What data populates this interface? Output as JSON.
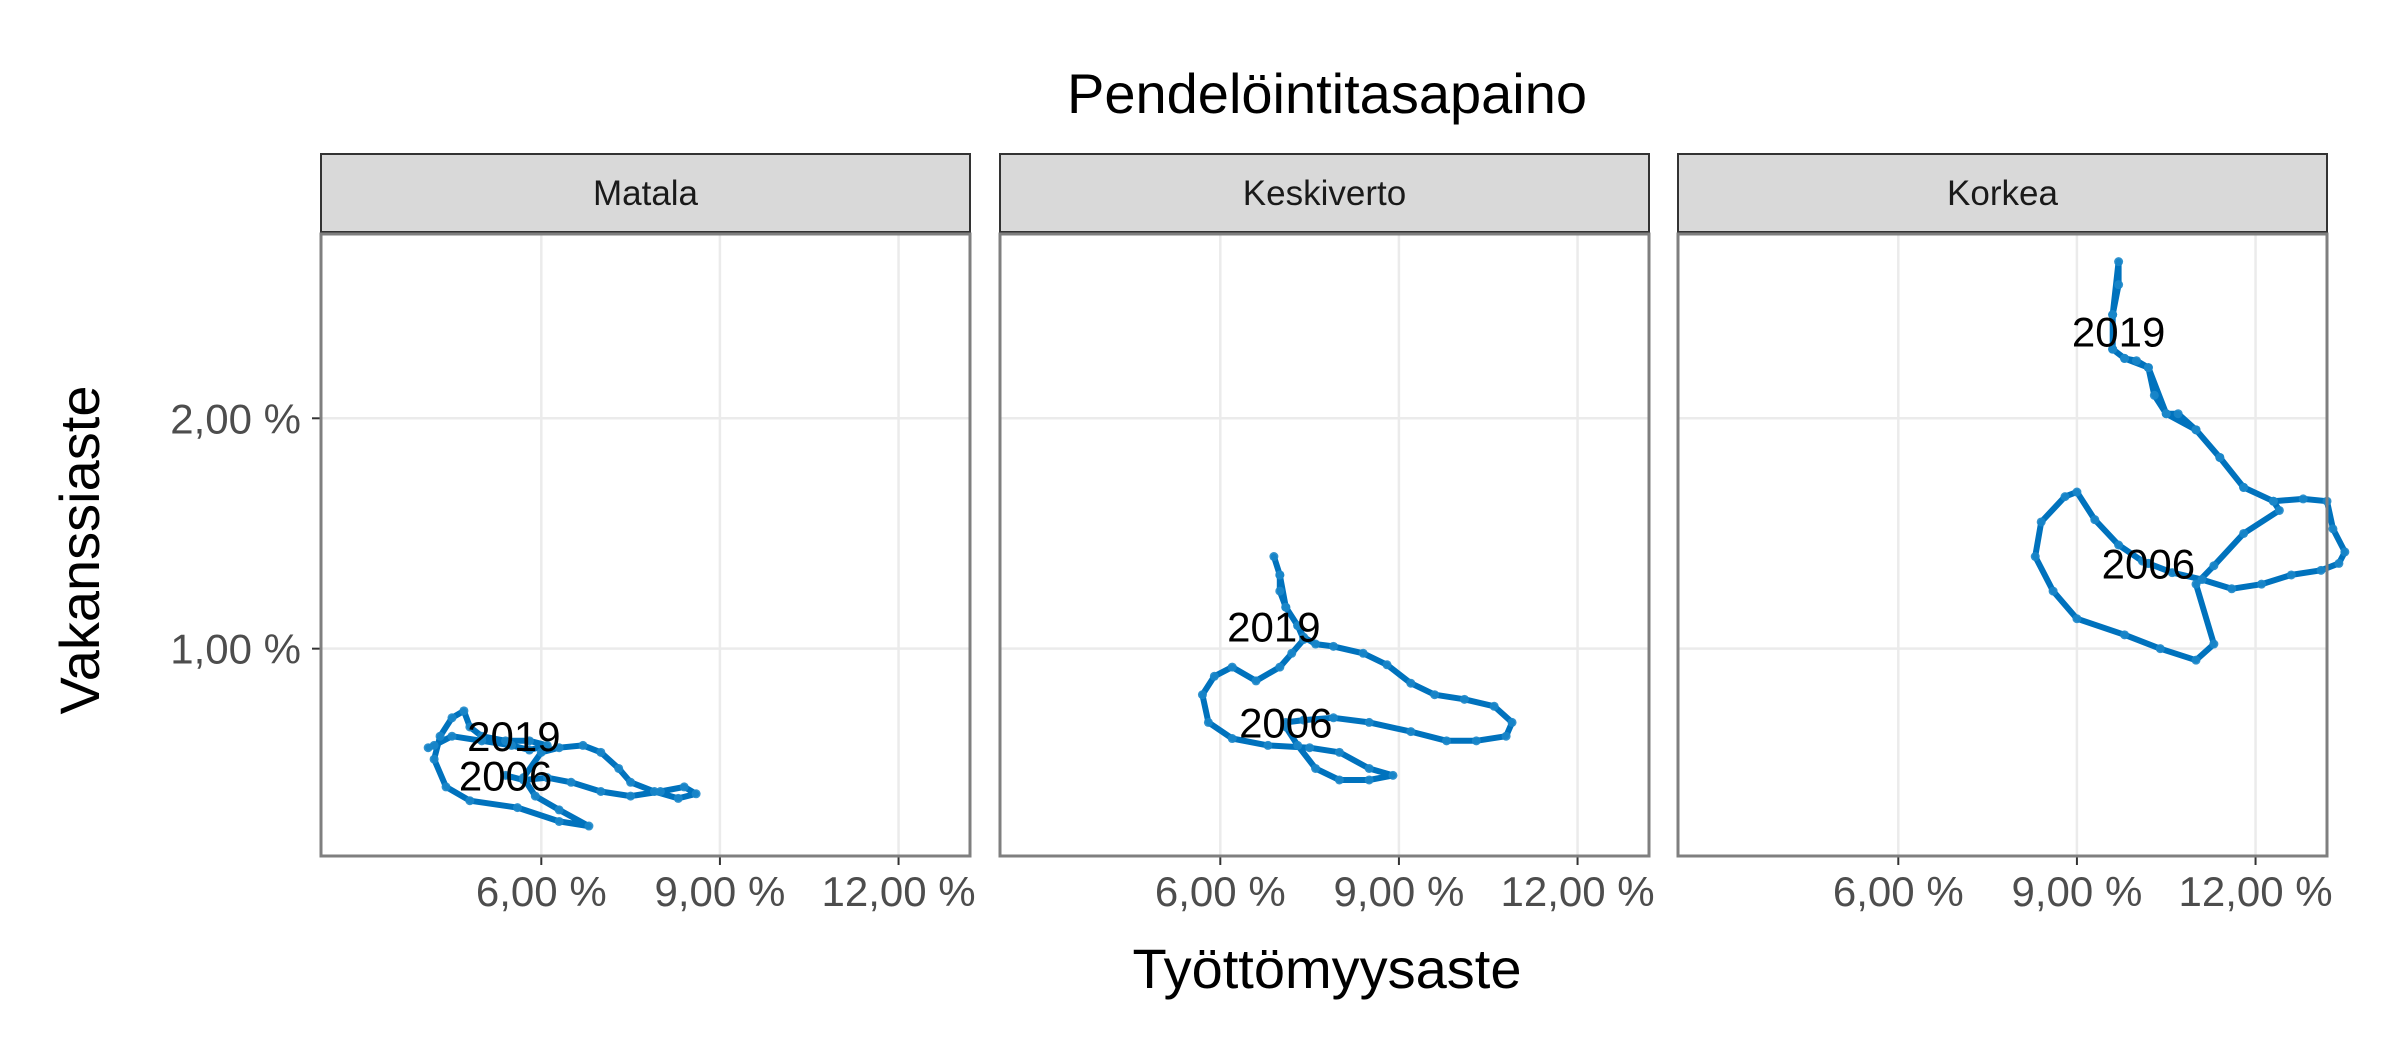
{
  "chart_data": {
    "type": "line",
    "title": "Pendelöintitasapaino",
    "xlabel": "Työttömyysaste",
    "ylabel": "Vakanssiaste",
    "xlim": [
      2.3,
      13.2
    ],
    "ylim": [
      0.1,
      2.8
    ],
    "x_ticks": [
      6,
      9,
      12
    ],
    "x_tick_labels": [
      "6,00 %",
      "9,00 %",
      "12,00 %"
    ],
    "y_ticks": [
      1,
      2
    ],
    "y_tick_labels": [
      "1,00 %",
      "2,00 %"
    ],
    "grid": true,
    "line_color": "#0072bd",
    "panels": [
      {
        "name": "Matala",
        "start_label": "2006",
        "end_label": "2019",
        "points": [
          [
            5.4,
            0.45
          ],
          [
            5.7,
            0.43
          ],
          [
            6.1,
            0.44
          ],
          [
            6.5,
            0.42
          ],
          [
            7.0,
            0.38
          ],
          [
            7.5,
            0.36
          ],
          [
            8.0,
            0.38
          ],
          [
            8.4,
            0.4
          ],
          [
            8.6,
            0.37
          ],
          [
            8.3,
            0.35
          ],
          [
            7.9,
            0.38
          ],
          [
            7.5,
            0.42
          ],
          [
            7.3,
            0.48
          ],
          [
            7.0,
            0.55
          ],
          [
            6.7,
            0.58
          ],
          [
            6.3,
            0.57
          ],
          [
            6.0,
            0.55
          ],
          [
            5.7,
            0.44
          ],
          [
            5.9,
            0.36
          ],
          [
            6.3,
            0.3
          ],
          [
            6.8,
            0.23
          ],
          [
            6.3,
            0.25
          ],
          [
            5.6,
            0.31
          ],
          [
            4.8,
            0.34
          ],
          [
            4.4,
            0.4
          ],
          [
            4.2,
            0.52
          ],
          [
            4.3,
            0.62
          ],
          [
            4.5,
            0.7
          ],
          [
            4.7,
            0.73
          ],
          [
            4.8,
            0.66
          ],
          [
            5.0,
            0.62
          ],
          [
            5.4,
            0.6
          ],
          [
            5.8,
            0.6
          ],
          [
            6.1,
            0.58
          ],
          [
            5.8,
            0.56
          ],
          [
            5.5,
            0.58
          ],
          [
            5.0,
            0.6
          ],
          [
            4.5,
            0.62
          ],
          [
            4.2,
            0.58
          ],
          [
            4.1,
            0.57
          ]
        ]
      },
      {
        "name": "Keskiverto",
        "start_label": "2006",
        "end_label": "2019",
        "points": [
          [
            7.1,
            0.68
          ],
          [
            7.4,
            0.69
          ],
          [
            7.9,
            0.7
          ],
          [
            8.5,
            0.68
          ],
          [
            9.2,
            0.64
          ],
          [
            9.8,
            0.6
          ],
          [
            10.3,
            0.6
          ],
          [
            10.8,
            0.62
          ],
          [
            10.9,
            0.68
          ],
          [
            10.6,
            0.75
          ],
          [
            10.1,
            0.78
          ],
          [
            9.6,
            0.8
          ],
          [
            9.2,
            0.85
          ],
          [
            8.8,
            0.93
          ],
          [
            8.4,
            0.98
          ],
          [
            7.9,
            1.01
          ],
          [
            7.6,
            1.02
          ],
          [
            7.4,
            1.05
          ],
          [
            7.3,
            1.1
          ],
          [
            7.1,
            1.18
          ],
          [
            7.0,
            1.25
          ],
          [
            7.0,
            1.32
          ],
          [
            6.9,
            1.4
          ],
          [
            7.0,
            1.32
          ],
          [
            7.1,
            1.18
          ],
          [
            7.3,
            1.1
          ],
          [
            7.4,
            1.04
          ],
          [
            7.2,
            0.98
          ],
          [
            7.0,
            0.92
          ],
          [
            6.6,
            0.86
          ],
          [
            6.2,
            0.92
          ],
          [
            5.9,
            0.88
          ],
          [
            5.7,
            0.8
          ],
          [
            5.8,
            0.68
          ],
          [
            6.2,
            0.61
          ],
          [
            6.8,
            0.58
          ],
          [
            7.5,
            0.57
          ],
          [
            8.0,
            0.55
          ],
          [
            8.5,
            0.48
          ],
          [
            8.9,
            0.45
          ],
          [
            8.5,
            0.43
          ],
          [
            8.0,
            0.43
          ],
          [
            7.6,
            0.48
          ],
          [
            7.3,
            0.58
          ],
          [
            7.1,
            0.66
          ]
        ]
      },
      {
        "name": "Korkea",
        "start_label": "2006",
        "end_label": "2019",
        "points": [
          [
            10.2,
            1.37
          ],
          [
            10.6,
            1.33
          ],
          [
            11.1,
            1.3
          ],
          [
            11.6,
            1.26
          ],
          [
            12.1,
            1.28
          ],
          [
            12.6,
            1.32
          ],
          [
            13.1,
            1.34
          ],
          [
            13.4,
            1.37
          ],
          [
            13.5,
            1.42
          ],
          [
            13.3,
            1.52
          ],
          [
            13.2,
            1.64
          ],
          [
            12.8,
            1.65
          ],
          [
            12.3,
            1.64
          ],
          [
            11.8,
            1.7
          ],
          [
            11.4,
            1.83
          ],
          [
            11.0,
            1.95
          ],
          [
            10.7,
            2.02
          ],
          [
            10.5,
            2.02
          ],
          [
            10.3,
            2.1
          ],
          [
            10.2,
            2.22
          ],
          [
            10.0,
            2.25
          ],
          [
            9.8,
            2.26
          ],
          [
            9.6,
            2.3
          ],
          [
            9.6,
            2.45
          ],
          [
            9.7,
            2.58
          ],
          [
            9.7,
            2.68
          ],
          [
            9.6,
            2.45
          ],
          [
            9.6,
            2.3
          ],
          [
            9.8,
            2.26
          ],
          [
            10.2,
            2.22
          ],
          [
            10.5,
            2.02
          ],
          [
            11.0,
            1.95
          ],
          [
            11.4,
            1.83
          ],
          [
            11.8,
            1.7
          ],
          [
            12.3,
            1.64
          ],
          [
            12.4,
            1.6
          ],
          [
            11.8,
            1.5
          ],
          [
            11.3,
            1.36
          ],
          [
            11.0,
            1.28
          ],
          [
            11.3,
            1.02
          ],
          [
            11.0,
            0.95
          ],
          [
            10.4,
            1.0
          ],
          [
            9.8,
            1.06
          ],
          [
            9.0,
            1.13
          ],
          [
            8.6,
            1.25
          ],
          [
            8.3,
            1.4
          ],
          [
            8.4,
            1.55
          ],
          [
            8.8,
            1.66
          ],
          [
            9.0,
            1.68
          ],
          [
            9.3,
            1.56
          ],
          [
            9.7,
            1.45
          ],
          [
            10.1,
            1.38
          ],
          [
            10.2,
            1.37
          ]
        ]
      }
    ]
  }
}
